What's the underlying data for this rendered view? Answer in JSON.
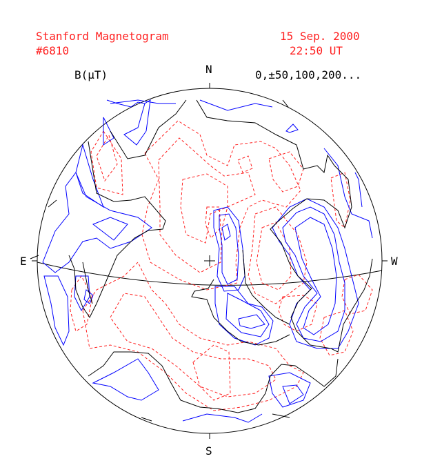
{
  "header": {
    "title": "Stanford Magnetogram",
    "number": "#6810",
    "date": "15 Sep. 2000",
    "time": "22:50 UT"
  },
  "field_label": "B(μT)",
  "contour_levels": "0,±50,100,200...",
  "compass": {
    "north": "N",
    "south": "S",
    "east": "E",
    "west": "W"
  },
  "colors": {
    "header_text": "#ff2020",
    "negative_contours": "#ff2020",
    "positive_contours": "#0000ff",
    "neutral_line": "#000000"
  }
}
